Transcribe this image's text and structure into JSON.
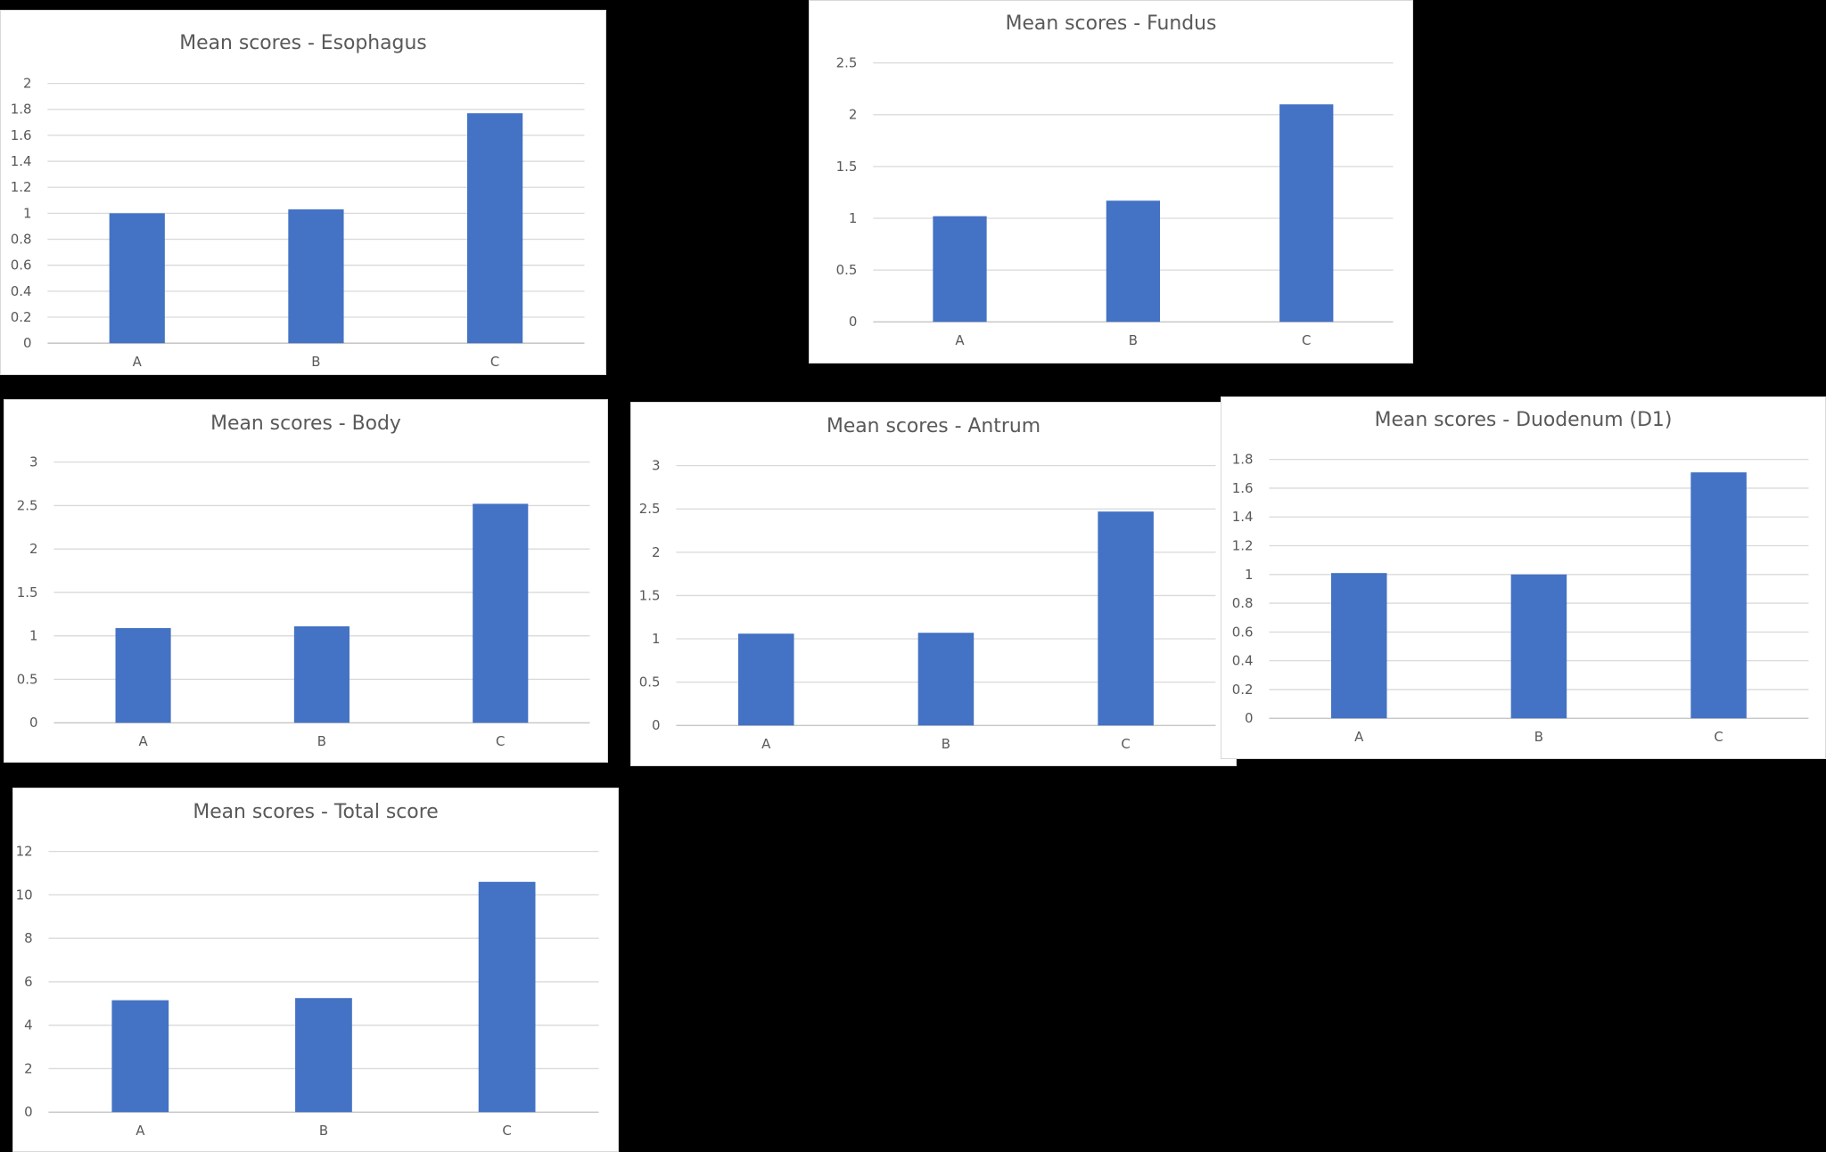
{
  "chart_data": [
    {
      "type": "bar",
      "title": "Mean scores - Esophagus",
      "categories": [
        "A",
        "B",
        "C"
      ],
      "values": [
        1.0,
        1.03,
        1.77
      ],
      "ylim": [
        0,
        2
      ],
      "yticks": [
        "0",
        "0.2",
        "0.4",
        "0.6",
        "0.8",
        "1",
        "1.2",
        "1.4",
        "1.6",
        "1.8",
        "2"
      ],
      "grid": true,
      "legend": false,
      "bar_color": "#4472C4"
    },
    {
      "type": "bar",
      "title": "Mean scores - Fundus",
      "categories": [
        "A",
        "B",
        "C"
      ],
      "values": [
        1.02,
        1.17,
        2.1
      ],
      "ylim": [
        0,
        2.5
      ],
      "yticks": [
        "0",
        "0.5",
        "1",
        "1.5",
        "2",
        "2.5"
      ],
      "grid": true,
      "legend": false,
      "bar_color": "#4472C4"
    },
    {
      "type": "bar",
      "title": "Mean scores - Body",
      "categories": [
        "A",
        "B",
        "C"
      ],
      "values": [
        1.09,
        1.11,
        2.52
      ],
      "ylim": [
        0,
        3
      ],
      "yticks": [
        "0",
        "0.5",
        "1",
        "1.5",
        "2",
        "2.5",
        "3"
      ],
      "grid": true,
      "legend": false,
      "bar_color": "#4472C4"
    },
    {
      "type": "bar",
      "title": "Mean scores - Antrum",
      "categories": [
        "A",
        "B",
        "C"
      ],
      "values": [
        1.06,
        1.07,
        2.47
      ],
      "ylim": [
        0,
        3
      ],
      "yticks": [
        "0",
        "0.5",
        "1",
        "1.5",
        "2",
        "2.5",
        "3"
      ],
      "grid": true,
      "legend": false,
      "bar_color": "#4472C4"
    },
    {
      "type": "bar",
      "title": "Mean scores - Duodenum (D1)",
      "categories": [
        "A",
        "B",
        "C"
      ],
      "values": [
        1.01,
        1.0,
        1.71
      ],
      "ylim": [
        0,
        1.8
      ],
      "yticks": [
        "0",
        "0.2",
        "0.4",
        "0.6",
        "0.8",
        "1",
        "1.2",
        "1.4",
        "1.6",
        "1.8"
      ],
      "grid": true,
      "legend": false,
      "bar_color": "#4472C4"
    },
    {
      "type": "bar",
      "title": "Mean scores - Total score",
      "categories": [
        "A",
        "B",
        "C"
      ],
      "values": [
        5.15,
        5.25,
        10.6
      ],
      "ylim": [
        0,
        12
      ],
      "yticks": [
        "0",
        "2",
        "4",
        "6",
        "8",
        "10",
        "12"
      ],
      "grid": true,
      "legend": false,
      "bar_color": "#4472C4"
    }
  ]
}
